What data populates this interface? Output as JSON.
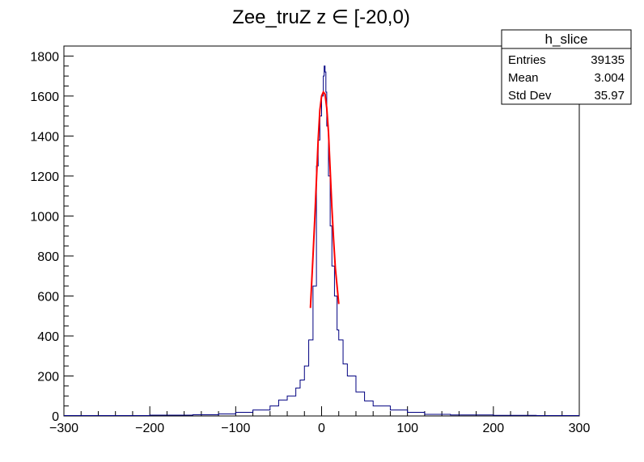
{
  "chart_data": {
    "type": "histogram",
    "title": "Zee_truZ z  ∈ [-20,0)",
    "xlabel": "",
    "ylabel": "",
    "xlim": [
      -300,
      300
    ],
    "ylim": [
      0,
      1850
    ],
    "x_ticks": [
      "−300",
      "−200",
      "−100",
      "0",
      "100",
      "200",
      "300"
    ],
    "x_tick_values": [
      -300,
      -200,
      -100,
      0,
      100,
      200,
      300
    ],
    "y_ticks": [
      "0",
      "200",
      "400",
      "600",
      "800",
      "1000",
      "1200",
      "1400",
      "1600",
      "1800"
    ],
    "y_tick_values": [
      0,
      200,
      400,
      600,
      800,
      1000,
      1200,
      1400,
      1600,
      1800
    ],
    "grid": false,
    "histogram_color": "#000080",
    "fit_color": "#ff0000",
    "stats_box": {
      "name": "h_slice",
      "rows": [
        {
          "label": "Entries",
          "value": "39135"
        },
        {
          "label": "Mean",
          "value": "3.004"
        },
        {
          "label": "Std Dev",
          "value": "35.97"
        }
      ]
    },
    "series": [
      {
        "type": "histogram",
        "x": [
          -300,
          -200,
          -150,
          -120,
          -100,
          -80,
          -60,
          -50,
          -40,
          -30,
          -25,
          -20,
          -15,
          -10,
          -6,
          -4,
          -2,
          0,
          2,
          3,
          4,
          5,
          6,
          8,
          10,
          12,
          15,
          18,
          20,
          25,
          30,
          40,
          50,
          60,
          80,
          100,
          120,
          150,
          200,
          250,
          300
        ],
        "y": [
          2,
          4,
          6,
          10,
          18,
          30,
          50,
          80,
          100,
          140,
          180,
          250,
          380,
          650,
          1250,
          1380,
          1500,
          1600,
          1700,
          1750,
          1720,
          1620,
          1450,
          1200,
          950,
          750,
          600,
          430,
          380,
          260,
          200,
          120,
          75,
          50,
          30,
          18,
          8,
          5,
          3,
          2,
          1
        ]
      },
      {
        "type": "fit",
        "x": [
          -13,
          -10,
          -8,
          -6,
          -4,
          -2,
          0,
          2,
          4,
          6,
          8,
          10,
          12,
          14,
          16,
          18,
          20
        ],
        "y": [
          540,
          800,
          980,
          1180,
          1380,
          1530,
          1600,
          1620,
          1610,
          1540,
          1420,
          1230,
          1040,
          880,
          740,
          650,
          560
        ]
      }
    ]
  }
}
